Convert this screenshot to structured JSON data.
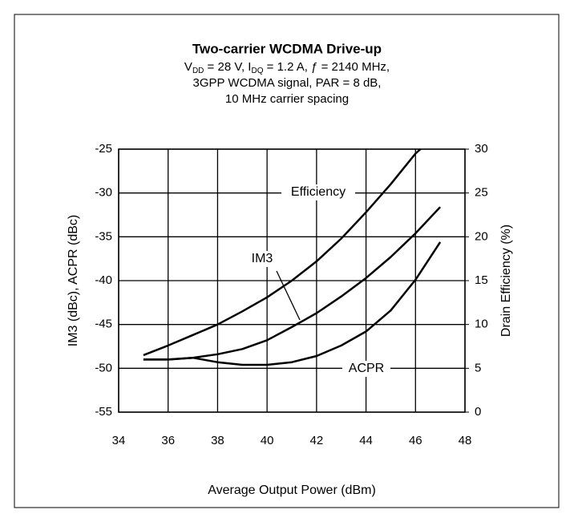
{
  "chart_data": {
    "type": "line",
    "title": "Two-carrier WCDMA Drive-up",
    "subtitle": [
      [
        {
          "text": "V"
        },
        {
          "text": "DD",
          "sub": true
        },
        {
          "text": " = 28 V, I"
        },
        {
          "text": "DQ",
          "sub": true
        },
        {
          "text": " = 1.2 A, ƒ = 2140 MHz,"
        }
      ],
      [
        {
          "text": "3GPP WCDMA signal,  PAR = 8 dB,"
        }
      ],
      [
        {
          "text": "10 MHz carrier spacing"
        }
      ]
    ],
    "xlabel": "Average Output Power (dBm)",
    "ylabel": "IM3 (dBc), ACPR (dBc)",
    "y2label": "Drain Efficiency (%)",
    "xlim": [
      34,
      48
    ],
    "xticks": [
      34,
      36,
      38,
      40,
      42,
      44,
      46,
      48
    ],
    "ylim": [
      -55,
      -25
    ],
    "yticks": [
      -55,
      -50,
      -45,
      -40,
      -35,
      -30,
      -25
    ],
    "y2lim": [
      0,
      30
    ],
    "y2ticks": [
      0,
      5,
      10,
      15,
      20,
      25,
      30
    ],
    "grid": true,
    "series": [
      {
        "name": "Efficiency",
        "color": "#000000",
        "axis": "y2",
        "x": [
          35,
          36,
          37,
          38,
          39,
          40,
          41,
          42,
          43,
          44,
          45,
          46,
          46.2
        ],
        "values": [
          6.5,
          7.6,
          8.8,
          10.0,
          11.5,
          13.1,
          15.0,
          17.2,
          19.8,
          22.8,
          26.0,
          29.5,
          30
        ]
      },
      {
        "name": "IM3",
        "color": "#000000",
        "x": [
          35,
          36,
          37,
          38,
          39,
          40,
          41,
          42,
          43,
          44,
          45,
          46,
          47
        ],
        "values": [
          -49.0,
          -49.0,
          -48.8,
          -48.4,
          -47.8,
          -46.8,
          -45.3,
          -43.7,
          -41.8,
          -39.7,
          -37.3,
          -34.6,
          -31.6
        ]
      },
      {
        "name": "ACPR",
        "color": "#000000",
        "x": [
          35,
          36,
          37,
          38,
          39,
          40,
          41,
          42,
          43,
          44,
          45,
          46,
          47
        ],
        "values": [
          -49.0,
          -49.0,
          -48.8,
          -49.3,
          -49.6,
          -49.6,
          -49.3,
          -48.6,
          -47.4,
          -45.8,
          -43.4,
          -39.9,
          -35.6
        ]
      }
    ]
  }
}
